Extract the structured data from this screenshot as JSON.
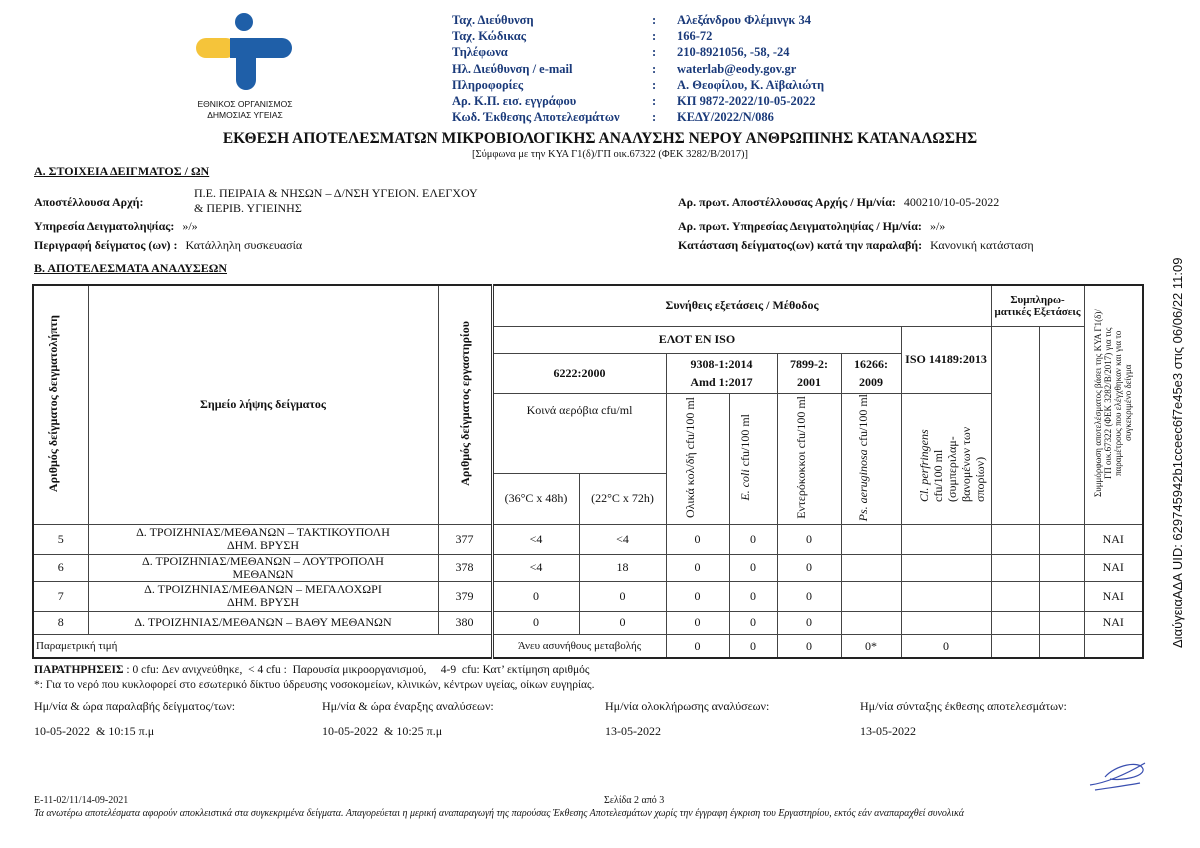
{
  "logo": {
    "org_line1": "ΕΘΝΙΚΟΣ ΟΡΓΑΝΙΣΜΟΣ",
    "org_line2": "ΔΗΜΟΣΙΑΣ ΥΓΕΙΑΣ",
    "colors": {
      "blue": "#1f5fa8",
      "yellow": "#f5c43a"
    }
  },
  "contact": [
    {
      "label": "Ταχ. Διεύθυνση",
      "value": "Αλεξάνδρου Φλέμινγκ 34"
    },
    {
      "label": "Ταχ. Κώδικας",
      "value": "166-72"
    },
    {
      "label": "Τηλέφωνα",
      "value": "210-8921056, -58, -24"
    },
    {
      "label": "Ηλ. Διεύθυνση / e-mail",
      "value": "waterlab@eody.gov.gr"
    },
    {
      "label": "Πληροφορίες",
      "value": "Α. Θεοφίλου, Κ. Αϊβαλιώτη"
    },
    {
      "label": "Αρ. Κ.Π. εισ. εγγράφου",
      "value": "ΚΠ 9872-2022/10-05-2022"
    },
    {
      "label": "Κωδ. Έκθεσης Αποτελεσμάτων",
      "value": "ΚΕΔΥ/2022/Ν/086"
    }
  ],
  "title": "ΕΚΘΕΣΗ ΑΠΟΤΕΛΕΣΜΑΤΩΝ ΜΙΚΡΟΒΙΟΛΟΓΙΚΗΣ ΑΝΑΛΥΣΗΣ ΝΕΡΟΥ ΑΝΘΡΩΠΙΝΗΣ ΚΑΤΑΝΑΛΩΣΗΣ",
  "subtitle": "[Σύμφωνα με την ΚΥΑ Γ1(δ)/ΓΠ οικ.67322 (ΦΕΚ 3282/Β/2017)]",
  "section_a": {
    "heading": "Α. ΣΤΟΙΧΕΙΑ ΔΕΙΓΜΑΤΟΣ / ΩΝ",
    "sender_label": "Αποστέλλουσα Αρχή:",
    "sender_line1": "Π.Ε. ΠΕΙΡΑΙΑ & ΝΗΣΩΝ – Δ/ΝΣΗ ΥΓΕΙΟΝ. ΕΛΕΓΧΟΥ",
    "sender_line2": "& ΠΕΡΙΒ. ΥΓΙΕΙΝΗΣ",
    "service_label": "Υπηρεσία Δειγματοληψίας:",
    "service_value": "»/»",
    "desc_label": "Περιγραφή δείγματος (ων) :",
    "desc_value": "Κατάλληλη συσκευασία",
    "prot_sender_label": "Αρ. πρωτ. Αποστέλλουσας Αρχής / Ημ/νία:",
    "prot_sender_value": "400210/10-05-2022",
    "prot_service_label": "Αρ. πρωτ. Υπηρεσίας Δειγματοληψίας / Ημ/νία:",
    "prot_service_value": "»/»",
    "state_label": "Κατάσταση δείγματος(ων) κατά την παραλαβή:",
    "state_value": "Κανονική κατάσταση"
  },
  "section_b": {
    "heading": "Β. ΑΠΟΤΕΛΕΣΜΑΤΑ ΑΝΑΛΥΣΕΩΝ"
  },
  "table": {
    "h_sample_no": "Αριθμός δείγματος δειγματολήπτη",
    "h_point": "Σημείο λήψης δείγματος",
    "h_lab_no": "Αριθμός δείγματος εργαστηρίου",
    "h_usual": "Συνήθεις εξετάσεις / Μέθοδος",
    "h_supp": "Συμπληρω-ματικές Εξετάσεις",
    "h_compliance": "Συμμόρφωση αποτελέσματος βάσει της ΚΥΑ Γ1(δ)/ΓΠ οικ.67322 (ΦΕΚ 3282/Β/2017) για τις παραμέτρους που ελέγχθηκαν και για το συγκεκριμένο δείγμα",
    "h_elot": "ΕΛΟΤ EN ISO",
    "h_iso": "ISO 14189:2013",
    "m1": "6222:2000",
    "m2a": "9308-1:2014",
    "m2b": "Amd 1:2017",
    "m3a": "7899-2:",
    "m3b": "2001",
    "m4a": "16266:",
    "m4b": "2009",
    "h_aerobic": "Κοινά αερόβια cfu/ml",
    "h_36": "(36°C x 48h)",
    "h_22": "(22°C x 72h)",
    "h_coliforms": "Ολικά κολ/δή cfu/100 ml",
    "h_ecoli_i": "E. coli",
    "h_ecoli": "cfu/100 ml",
    "h_entero": "Εντερόκοκκοι cfu/100 ml",
    "h_ps_i": "Ps. aeruginosa",
    "h_ps": "cfu/100 ml",
    "h_cl_i": "Cl. perfringens",
    "h_cl": "cfu/100 ml (συμπεριλαμ-βανομένων των σπορίων)",
    "rows": [
      {
        "no": "5",
        "point": "Δ. ΤΡΟΙΖΗΝΙΑΣ/ΜΕΘΑΝΩΝ – ΤΑΚΤΙΚΟΥΠΟΛΗ ΔΗΜ. ΒΡΥΣΗ",
        "lab": "377",
        "a36": "<4",
        "a22": "<4",
        "col": "0",
        "ecoli": "0",
        "ent": "0",
        "ps": "",
        "cl": "",
        "s1": "",
        "s2": "",
        "comp": "ΝΑΙ"
      },
      {
        "no": "6",
        "point": "Δ. ΤΡΟΙΖΗΝΙΑΣ/ΜΕΘΑΝΩΝ – ΛΟΥΤΡΟΠΟΛΗ ΜΕΘΑΝΩΝ",
        "lab": "378",
        "a36": "<4",
        "a22": "18",
        "col": "0",
        "ecoli": "0",
        "ent": "0",
        "ps": "",
        "cl": "",
        "s1": "",
        "s2": "",
        "comp": "ΝΑΙ"
      },
      {
        "no": "7",
        "point": "Δ. ΤΡΟΙΖΗΝΙΑΣ/ΜΕΘΑΝΩΝ – ΜΕΓΑΛΟΧΩΡΙ ΔΗΜ. ΒΡΥΣΗ",
        "lab": "379",
        "a36": "0",
        "a22": "0",
        "col": "0",
        "ecoli": "0",
        "ent": "0",
        "ps": "",
        "cl": "",
        "s1": "",
        "s2": "",
        "comp": "ΝΑΙ"
      },
      {
        "no": "8",
        "point": "Δ. ΤΡΟΙΖΗΝΙΑΣ/ΜΕΘΑΝΩΝ – ΒΑΘΥ ΜΕΘΑΝΩΝ",
        "lab": "380",
        "a36": "0",
        "a22": "0",
        "col": "0",
        "ecoli": "0",
        "ent": "0",
        "ps": "",
        "cl": "",
        "s1": "",
        "s2": "",
        "comp": "ΝΑΙ"
      }
    ],
    "param": {
      "label": "Παραμετρική τιμή",
      "aerobic": "Άνευ ασυνήθους μεταβολής",
      "col": "0",
      "ecoli": "0",
      "ent": "0",
      "ps": "0*",
      "cl": "0"
    }
  },
  "notes": {
    "line1_bold": "ΠΑΡΑΤΗΡΗΣΕΙΣ",
    "line1": ": 0 cfu: Δεν ανιχνεύθηκε,  < 4 cfu :  Παρουσία μικροοργανισμού,     4-9  cfu: Κατ’ εκτίμηση αριθμός",
    "line2": "*: Για το νερό που κυκλοφορεί στο εσωτερικό δίκτυο ύδρευσης νοσοκομείων, κλινικών, κέντρων υγείας, οίκων ευγηρίας."
  },
  "dates": [
    {
      "label": "Ημ/νία & ώρα παραλαβής δείγματος/των:",
      "value": "10-05-2022  & 10:15 π.μ"
    },
    {
      "label": "Ημ/νία & ώρα έναρξης αναλύσεων:",
      "value": "10-05-2022  & 10:25 π.μ"
    },
    {
      "label": "Ημ/νία ολοκλήρωσης αναλύσεων:",
      "value": "13-05-2022"
    },
    {
      "label": "Ημ/νία σύνταξης έκθεσης αποτελεσμάτων:",
      "value": "13-05-2022"
    }
  ],
  "footer": {
    "code": "Ε-11-02/11/14-09-2021",
    "page": "Σελίδα 2 από 3",
    "disclaimer": "Τα ανωτέρω αποτελέσματα αφορούν αποκλειστικά στα συγκεκριμένα δείγματα. Απαγορεύεται η μερική αναπαραγωγή της παρούσας Έκθεσης Αποτελεσμάτων χωρίς την έγγραφη έγκριση του Εργαστηρίου, εκτός εάν αναπαραχθεί συνολικά"
  },
  "side_stamp": "ΔιαύγειαΑΔΑ UID: 629745942b1cceec6f7e45e3 στις 06/06/22 11:09"
}
